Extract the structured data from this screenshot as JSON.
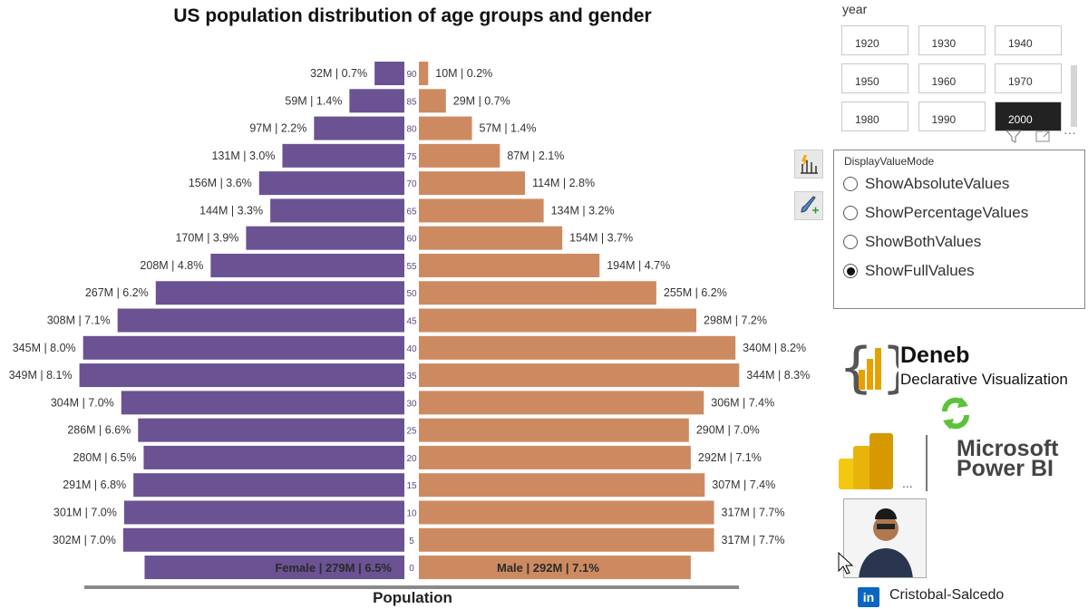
{
  "chart_data": {
    "type": "bar",
    "subtype": "population-pyramid",
    "title": "US population distribution of age groups and gender",
    "xlabel": "Population",
    "categories": [
      "90",
      "85",
      "80",
      "75",
      "70",
      "65",
      "60",
      "55",
      "50",
      "45",
      "40",
      "35",
      "30",
      "25",
      "20",
      "15",
      "10",
      "5",
      "0"
    ],
    "series": [
      {
        "name": "Female",
        "color": "#6a5293",
        "values": [
          32,
          59,
          97,
          131,
          156,
          144,
          170,
          208,
          267,
          308,
          345,
          349,
          304,
          286,
          280,
          291,
          301,
          302,
          279
        ],
        "labels": [
          "32M | 0.7%",
          "59M | 1.4%",
          "97M | 2.2%",
          "131M | 3.0%",
          "156M | 3.6%",
          "144M | 3.3%",
          "170M | 3.9%",
          "208M | 4.8%",
          "267M | 6.2%",
          "308M | 7.1%",
          "345M | 8.0%",
          "349M | 8.1%",
          "304M | 7.0%",
          "286M | 6.6%",
          "280M | 6.5%",
          "291M | 6.8%",
          "301M | 7.0%",
          "302M | 7.0%",
          "Female | 279M | 6.5%"
        ]
      },
      {
        "name": "Male",
        "color": "#cd8a61",
        "values": [
          10,
          29,
          57,
          87,
          114,
          134,
          154,
          194,
          255,
          298,
          340,
          344,
          306,
          290,
          292,
          307,
          317,
          317,
          292
        ],
        "labels": [
          "10M | 0.2%",
          "29M | 0.7%",
          "57M | 1.4%",
          "87M | 2.1%",
          "114M | 2.8%",
          "134M | 3.2%",
          "154M | 3.7%",
          "194M | 4.7%",
          "255M | 6.2%",
          "298M | 7.2%",
          "340M | 8.2%",
          "344M | 8.3%",
          "306M | 7.4%",
          "290M | 7.0%",
          "292M | 7.1%",
          "307M | 7.4%",
          "317M | 7.7%",
          "317M | 7.7%",
          "Male | 292M | 7.1%"
        ]
      }
    ],
    "units": "M",
    "grid": false,
    "legend": "none"
  },
  "slicer": {
    "title": "year",
    "years": [
      "1920",
      "1930",
      "1940",
      "1950",
      "1960",
      "1970",
      "1980",
      "1990",
      "2000"
    ],
    "selected": "2000"
  },
  "display_mode": {
    "title": "DisplayValueMode",
    "options": [
      "ShowAbsoluteValues",
      "ShowPercentageValues",
      "ShowBothValues",
      "ShowFullValues"
    ],
    "selected": "ShowFullValues"
  },
  "logos": {
    "deneb_name": "Deneb",
    "deneb_sub": "Declarative Visualization",
    "powerbi_line1": "Microsoft",
    "powerbi_line2": "Power BI"
  },
  "profile": {
    "linkedin": "in",
    "name": "Cristobal-Salcedo"
  }
}
